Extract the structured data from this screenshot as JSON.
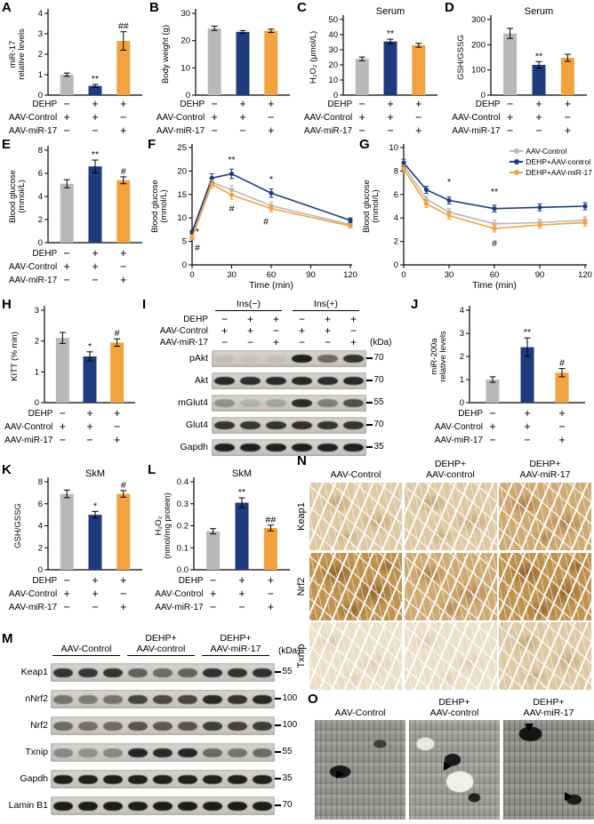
{
  "colors": {
    "gray": "#b9b9b9",
    "blue": "#1d3b7d",
    "orange": "#f2a23e"
  },
  "panel_labels": {
    "A": "A",
    "B": "B",
    "C": "C",
    "D": "D",
    "E": "E",
    "F": "F",
    "G": "G",
    "H": "H",
    "I": "I",
    "J": "J",
    "K": "K",
    "L": "L",
    "M": "M",
    "N": "N",
    "O": "O"
  },
  "condition_rows": [
    {
      "label": "DEHP",
      "values": [
        "−",
        "+",
        "+"
      ]
    },
    {
      "label": "AAV-Control",
      "values": [
        "+",
        "+",
        "−"
      ]
    },
    {
      "label": "AAV-miR-17",
      "values": [
        "−",
        "−",
        "+"
      ]
    }
  ],
  "legend": [
    "AAV-Control",
    "DEHP+AAV-control",
    "DEHP+AAV-miR-17"
  ],
  "chart_data": [
    {
      "id": "A",
      "type": "bar",
      "ylabel": [
        "miR-17",
        "relative levels"
      ],
      "ylim": [
        0,
        4
      ],
      "yticks": [
        0,
        1,
        2,
        3,
        4
      ],
      "values": [
        1.0,
        0.45,
        2.65
      ],
      "errors": [
        0.08,
        0.07,
        0.45
      ],
      "sig": [
        "",
        "**",
        "##"
      ]
    },
    {
      "id": "B",
      "type": "bar",
      "ylabel": "Body weight (g)",
      "ylim": [
        0,
        30
      ],
      "yticks": [
        0,
        10,
        20,
        30
      ],
      "values": [
        24.5,
        23.2,
        23.6
      ],
      "errors": [
        0.8,
        0.5,
        0.6
      ],
      "sig": [
        "",
        "",
        ""
      ]
    },
    {
      "id": "C",
      "type": "bar",
      "title": "Serum",
      "ylabel": "H₂O₂ (μmol/L)",
      "ylim": [
        0,
        50
      ],
      "yticks": [
        0,
        10,
        20,
        30,
        40,
        50
      ],
      "values": [
        24,
        35.5,
        33
      ],
      "errors": [
        1.2,
        1.5,
        1.3
      ],
      "sig": [
        "",
        "**",
        ""
      ]
    },
    {
      "id": "D",
      "type": "bar",
      "title": "Serum",
      "ylabel": "GSH/GSSG",
      "ylim": [
        0,
        300
      ],
      "yticks": [
        0,
        100,
        200,
        300
      ],
      "values": [
        245,
        120,
        148
      ],
      "errors": [
        20,
        13,
        14
      ],
      "sig": [
        "",
        "**",
        ""
      ]
    },
    {
      "id": "E",
      "type": "bar",
      "ylabel": [
        "Blood glucose",
        "(mmol/L)"
      ],
      "ylim": [
        0,
        8
      ],
      "yticks": [
        0,
        2,
        4,
        6,
        8
      ],
      "values": [
        5.1,
        6.6,
        5.4
      ],
      "errors": [
        0.35,
        0.55,
        0.3
      ],
      "sig": [
        "",
        "**",
        "#"
      ]
    },
    {
      "id": "F",
      "type": "line",
      "ylabel": [
        "Blood glucose",
        "(mmol/L)"
      ],
      "xlabel": "Time (min)",
      "ylim": [
        0,
        25
      ],
      "yticks": [
        0,
        5,
        10,
        15,
        20,
        25
      ],
      "xticks": [
        0,
        30,
        60,
        90,
        120
      ],
      "x": [
        0,
        15,
        30,
        60,
        120
      ],
      "series": [
        {
          "name": "AAV-Control",
          "color": "gray",
          "values": [
            6.3,
            17.6,
            16.0,
            12.6,
            8.6
          ],
          "errors": [
            0.4,
            0.9,
            0.9,
            0.8,
            0.5
          ]
        },
        {
          "name": "DEHP+AAV-control",
          "color": "blue",
          "values": [
            7.0,
            18.5,
            19.4,
            15.3,
            9.5
          ],
          "errors": [
            0.4,
            0.9,
            1.0,
            0.9,
            0.5
          ]
        },
        {
          "name": "DEHP+AAV-miR-17",
          "color": "orange",
          "values": [
            5.8,
            17.2,
            14.9,
            12.0,
            8.3
          ],
          "errors": [
            0.4,
            0.9,
            0.9,
            0.7,
            0.4
          ]
        }
      ],
      "annotations": [
        {
          "t": "*",
          "x": 4,
          "y": 6.4
        },
        {
          "t": "#",
          "x": 4,
          "y": 3.0
        },
        {
          "t": "**",
          "x": 30,
          "y": 21.8
        },
        {
          "t": "#",
          "x": 30,
          "y": 11.4
        },
        {
          "t": "*",
          "x": 60,
          "y": 17.6
        },
        {
          "t": "#",
          "x": 56,
          "y": 8.6
        }
      ]
    },
    {
      "id": "G",
      "type": "line",
      "ylabel": [
        "Blood glucose",
        "(mmol/L)"
      ],
      "xlabel": "Time (min)",
      "ylim": [
        0,
        10
      ],
      "yticks": [
        0,
        2,
        4,
        6,
        8,
        10
      ],
      "xticks": [
        0,
        30,
        60,
        90,
        120
      ],
      "x": [
        0,
        15,
        30,
        60,
        90,
        120
      ],
      "show_legend": true,
      "series": [
        {
          "name": "AAV-Control",
          "color": "gray",
          "values": [
            8.5,
            5.6,
            4.5,
            3.5,
            3.6,
            3.8
          ],
          "errors": [
            0.3,
            0.3,
            0.3,
            0.3,
            0.3,
            0.3
          ]
        },
        {
          "name": "DEHP+AAV-control",
          "color": "blue",
          "values": [
            8.7,
            6.4,
            5.5,
            4.8,
            4.9,
            5.0
          ],
          "errors": [
            0.3,
            0.3,
            0.3,
            0.3,
            0.3,
            0.3
          ]
        },
        {
          "name": "DEHP+AAV-miR-17",
          "color": "orange",
          "values": [
            8.2,
            5.2,
            4.2,
            3.1,
            3.4,
            3.6
          ],
          "errors": [
            0.3,
            0.3,
            0.3,
            0.3,
            0.3,
            0.3
          ]
        }
      ],
      "annotations": [
        {
          "t": "*",
          "x": 30,
          "y": 6.8
        },
        {
          "t": "**",
          "x": 60,
          "y": 6.0
        },
        {
          "t": "#",
          "x": 60,
          "y": 1.6
        }
      ]
    },
    {
      "id": "H",
      "type": "bar",
      "ylabel": "KITT (% min)",
      "ylim": [
        0,
        3
      ],
      "yticks": [
        0,
        1,
        2,
        3
      ],
      "values": [
        2.1,
        1.5,
        1.95
      ],
      "errors": [
        0.18,
        0.15,
        0.12
      ],
      "sig": [
        "",
        "*",
        "#"
      ]
    },
    {
      "id": "J",
      "type": "bar",
      "ylabel": [
        "miR-200a",
        "relative levels"
      ],
      "ylim": [
        0,
        4
      ],
      "yticks": [
        0,
        1,
        2,
        3,
        4
      ],
      "values": [
        1.0,
        2.4,
        1.3
      ],
      "errors": [
        0.12,
        0.4,
        0.18
      ],
      "sig": [
        "",
        "**",
        "#"
      ]
    },
    {
      "id": "K",
      "type": "bar",
      "title": "SkM",
      "ylabel": "GSH/GSSG",
      "ylim": [
        0,
        8
      ],
      "yticks": [
        0,
        2,
        4,
        6,
        8
      ],
      "values": [
        6.9,
        5.0,
        6.9
      ],
      "errors": [
        0.35,
        0.3,
        0.3
      ],
      "sig": [
        "",
        "*",
        "#"
      ]
    },
    {
      "id": "L",
      "type": "bar",
      "title": "SkM",
      "ylabel": [
        "H₂O₂",
        "(nmol/mg protein)"
      ],
      "ylim": [
        0,
        0.4
      ],
      "yticks": [
        0,
        0.1,
        0.2,
        0.3,
        0.4
      ],
      "ydec": 1,
      "values": [
        0.175,
        0.305,
        0.19
      ],
      "errors": [
        0.012,
        0.022,
        0.013
      ],
      "sig": [
        "",
        "**",
        "##"
      ]
    }
  ],
  "blots": {
    "I": {
      "groups": [
        {
          "label": "Ins(−)"
        },
        {
          "label": "Ins(+)"
        }
      ],
      "kda_label": "(kDa)",
      "cond_rows": [
        {
          "label": "DEHP",
          "values": [
            "−",
            "+",
            "+",
            "−",
            "+",
            "+"
          ]
        },
        {
          "label": "AAV-Control",
          "values": [
            "+",
            "+",
            "−",
            "+",
            "+",
            "−"
          ]
        },
        {
          "label": "AAV-miR-17",
          "values": [
            "−",
            "−",
            "+",
            "−",
            "−",
            "+"
          ]
        }
      ],
      "rows": [
        {
          "label": "pAkt",
          "kda": "70",
          "bands": [
            0.06,
            0.04,
            0.05,
            0.9,
            0.5,
            0.8
          ]
        },
        {
          "label": "Akt",
          "kda": "70",
          "bands": [
            0.85,
            0.82,
            0.85,
            0.85,
            0.83,
            0.85
          ]
        },
        {
          "label": "mGlut4",
          "kda": "55",
          "bands": [
            0.3,
            0.12,
            0.2,
            0.85,
            0.4,
            0.65
          ]
        },
        {
          "label": "Glut4",
          "kda": "70",
          "bands": [
            0.8,
            0.78,
            0.8,
            0.82,
            0.8,
            0.8
          ]
        },
        {
          "label": "Gapdh",
          "kda": "35",
          "bands": [
            0.9,
            0.9,
            0.9,
            0.9,
            0.9,
            0.9
          ]
        }
      ]
    },
    "M": {
      "groups": [
        {
          "label": [
            "AAV-Control"
          ]
        },
        {
          "label": [
            "DEHP+",
            "AAV-control"
          ]
        },
        {
          "label": [
            "DEHP+",
            "AAV-miR-17"
          ]
        }
      ],
      "kda_label": "(kDa)",
      "rows": [
        {
          "label": "Keap1",
          "kda": "55",
          "bands": [
            0.8,
            0.78,
            0.8,
            0.55,
            0.5,
            0.55,
            0.82,
            0.8,
            0.82
          ]
        },
        {
          "label": "nNrf2",
          "kda": "100",
          "bands": [
            0.45,
            0.4,
            0.45,
            0.7,
            0.68,
            0.7,
            0.85,
            0.8,
            0.85
          ]
        },
        {
          "label": "Nrf2",
          "kda": "100",
          "bands": [
            0.5,
            0.48,
            0.5,
            0.62,
            0.6,
            0.62,
            0.75,
            0.72,
            0.75
          ]
        },
        {
          "label": "Txnip",
          "kda": "55",
          "bands": [
            0.35,
            0.3,
            0.35,
            0.88,
            0.85,
            0.88,
            0.5,
            0.45,
            0.5
          ]
        },
        {
          "label": "Gapdh",
          "kda": "35",
          "bands": [
            0.9,
            0.9,
            0.9,
            0.9,
            0.9,
            0.9,
            0.9,
            0.9,
            0.9
          ]
        },
        {
          "label": "Lamin B1",
          "kda": "70",
          "bands": [
            0.92,
            0.92,
            0.92,
            0.92,
            0.92,
            0.92,
            0.92,
            0.92,
            0.92
          ]
        }
      ]
    }
  },
  "ihc": {
    "col_headers": [
      [
        "AAV-Control"
      ],
      [
        "DEHP+",
        "AAV-control"
      ],
      [
        "DEHP+",
        "AAV-miR-17"
      ]
    ],
    "rows": [
      {
        "label": "Keap1",
        "cells": [
          "light",
          "light",
          "medium"
        ]
      },
      {
        "label": "Nrf2",
        "cells": [
          "dark",
          "medium",
          "dark"
        ]
      },
      {
        "label": "Txnip",
        "cells": [
          "pale",
          "pale",
          "light"
        ]
      }
    ]
  },
  "em": {
    "col_headers": [
      [
        "AAV-Control"
      ],
      [
        "DEHP+",
        "AAV-control"
      ],
      [
        "DEHP+",
        "AAV-miR-17"
      ]
    ]
  }
}
